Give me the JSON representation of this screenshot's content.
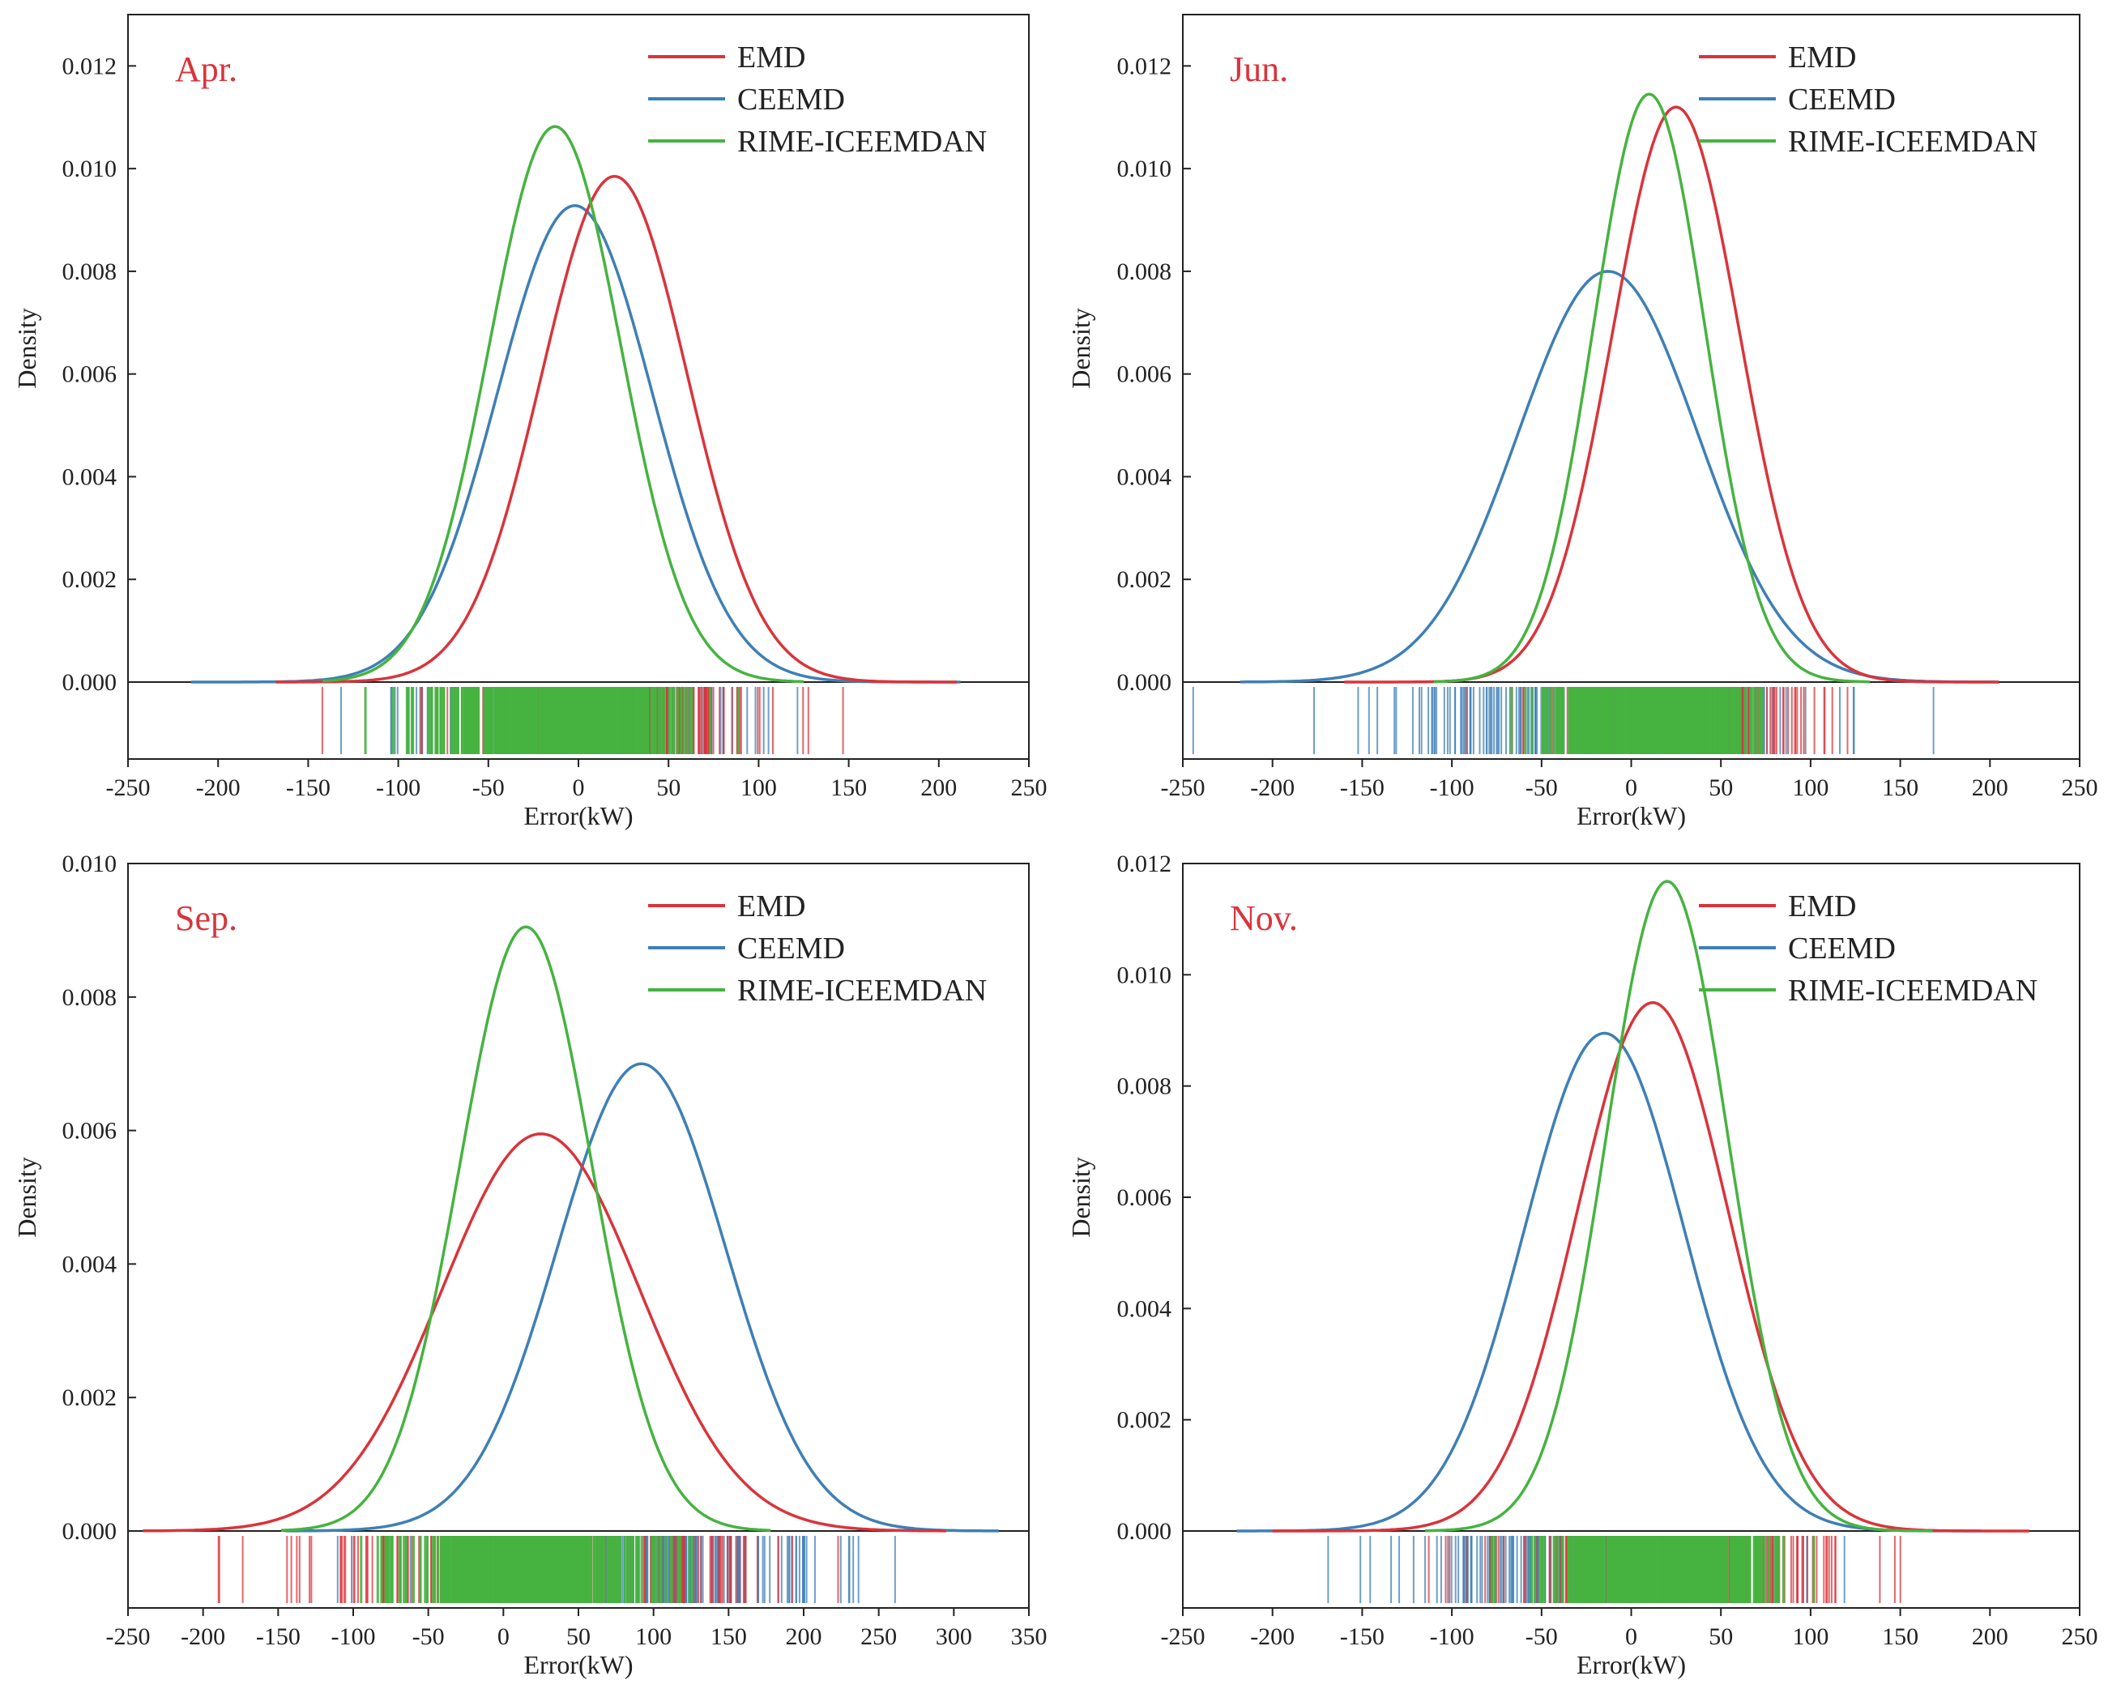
{
  "colors": {
    "EMD": "#d9343b",
    "CEEMD": "#3e7fb5",
    "RIME-ICEEMDAN": "#46b340",
    "axis": "#222222",
    "month_label": "#d9343b"
  },
  "chart_data": [
    {
      "type": "line",
      "panel": "top-left",
      "title": "Apr.",
      "xlabel": "Error(kW)",
      "ylabel": "Density",
      "xlim": [
        -250,
        250
      ],
      "ylim": [
        0,
        0.013
      ],
      "xticks": [
        -250,
        -200,
        -150,
        -100,
        -50,
        0,
        50,
        100,
        150,
        200,
        250
      ],
      "yticks": [
        0.0,
        0.002,
        0.004,
        0.006,
        0.008,
        0.01,
        0.012
      ],
      "xtick_labels": [
        "-250",
        "-200",
        "-150",
        "-100",
        "-50",
        "0",
        "50",
        "100",
        "150",
        "200",
        "250"
      ],
      "ytick_labels": [
        "0.000",
        "0.002",
        "0.004",
        "0.006",
        "0.008",
        "0.010",
        "0.012"
      ],
      "legend": [
        "EMD",
        "CEEMD",
        "RIME-ICEEMDAN"
      ],
      "legend_position": "top-right",
      "grid": false,
      "rug": true,
      "series": [
        {
          "name": "EMD",
          "mean": 20,
          "sd": 40.5,
          "peak": 0.00985,
          "x_range": [
            -168,
            210
          ]
        },
        {
          "name": "CEEMD",
          "mean": -2,
          "sd": 43,
          "peak": 0.00928,
          "x_range": [
            -215,
            212
          ]
        },
        {
          "name": "RIME-ICEEMDAN",
          "mean": -13,
          "sd": 36.5,
          "peak": 0.01082,
          "x_range": [
            -142,
            125
          ]
        }
      ]
    },
    {
      "type": "line",
      "panel": "top-right",
      "title": "Jun.",
      "xlabel": "Error(kW)",
      "ylabel": "Density",
      "xlim": [
        -250,
        250
      ],
      "ylim": [
        0,
        0.013
      ],
      "xticks": [
        -250,
        -200,
        -150,
        -100,
        -50,
        0,
        50,
        100,
        150,
        200,
        250
      ],
      "yticks": [
        0.0,
        0.002,
        0.004,
        0.006,
        0.008,
        0.01,
        0.012
      ],
      "xtick_labels": [
        "-250",
        "-200",
        "-150",
        "-100",
        "-50",
        "0",
        "50",
        "100",
        "150",
        "200",
        "250"
      ],
      "ytick_labels": [
        "0.000",
        "0.002",
        "0.004",
        "0.006",
        "0.008",
        "0.010",
        "0.012"
      ],
      "legend": [
        "EMD",
        "CEEMD",
        "RIME-ICEEMDAN"
      ],
      "legend_position": "top-right",
      "grid": false,
      "rug": true,
      "series": [
        {
          "name": "EMD",
          "mean": 25,
          "sd": 35.5,
          "peak": 0.0112,
          "x_range": [
            -160,
            205
          ]
        },
        {
          "name": "CEEMD",
          "mean": -13,
          "sd": 50,
          "peak": 0.008,
          "x_range": [
            -218,
            205
          ]
        },
        {
          "name": "RIME-ICEEMDAN",
          "mean": 10,
          "sd": 31,
          "peak": 0.01145,
          "x_range": [
            -110,
            133
          ]
        }
      ]
    },
    {
      "type": "line",
      "panel": "bottom-left",
      "title": "Sep.",
      "xlabel": "Error(kW)",
      "ylabel": "Density",
      "xlim": [
        -250,
        350
      ],
      "ylim": [
        0,
        0.01
      ],
      "xticks": [
        -250,
        -200,
        -150,
        -100,
        -50,
        0,
        50,
        100,
        150,
        200,
        250,
        300,
        350
      ],
      "yticks": [
        0.0,
        0.002,
        0.004,
        0.006,
        0.008,
        0.01
      ],
      "xtick_labels": [
        "-250",
        "-200",
        "-150",
        "-100",
        "-50",
        "0",
        "50",
        "100",
        "150",
        "200",
        "250",
        "300",
        "350"
      ],
      "ytick_labels": [
        "0.000",
        "0.002",
        "0.004",
        "0.006",
        "0.008",
        "0.010"
      ],
      "legend": [
        "EMD",
        "CEEMD",
        "RIME-ICEEMDAN"
      ],
      "legend_position": "top-right",
      "grid": false,
      "rug": true,
      "series": [
        {
          "name": "EMD",
          "mean": 25,
          "sd": 66,
          "peak": 0.00595,
          "x_range": [
            -240,
            295
          ]
        },
        {
          "name": "CEEMD",
          "mean": 92,
          "sd": 56,
          "peak": 0.007,
          "x_range": [
            -145,
            330
          ]
        },
        {
          "name": "RIME-ICEEMDAN",
          "mean": 15,
          "sd": 44,
          "peak": 0.00905,
          "x_range": [
            -148,
            178
          ]
        }
      ]
    },
    {
      "type": "line",
      "panel": "bottom-right",
      "title": "Nov.",
      "xlabel": "Error(kW)",
      "ylabel": "Density",
      "xlim": [
        -250,
        250
      ],
      "ylim": [
        0,
        0.012
      ],
      "xticks": [
        -250,
        -200,
        -150,
        -100,
        -50,
        0,
        50,
        100,
        150,
        200,
        250
      ],
      "yticks": [
        0.0,
        0.002,
        0.004,
        0.006,
        0.008,
        0.01,
        0.012
      ],
      "xtick_labels": [
        "-250",
        "-200",
        "-150",
        "-100",
        "-50",
        "0",
        "50",
        "100",
        "150",
        "200",
        "250"
      ],
      "ytick_labels": [
        "0.000",
        "0.002",
        "0.004",
        "0.006",
        "0.008",
        "0.010",
        "0.012"
      ],
      "legend": [
        "EMD",
        "CEEMD",
        "RIME-ICEEMDAN"
      ],
      "legend_position": "top-right",
      "grid": false,
      "rug": true,
      "series": [
        {
          "name": "EMD",
          "mean": 12,
          "sd": 42,
          "peak": 0.0095,
          "x_range": [
            -200,
            222
          ]
        },
        {
          "name": "CEEMD",
          "mean": -15,
          "sd": 44.5,
          "peak": 0.00895,
          "x_range": [
            -220,
            195
          ]
        },
        {
          "name": "RIME-ICEEMDAN",
          "mean": 20,
          "sd": 34,
          "peak": 0.01168,
          "x_range": [
            -115,
            168
          ]
        }
      ]
    }
  ]
}
